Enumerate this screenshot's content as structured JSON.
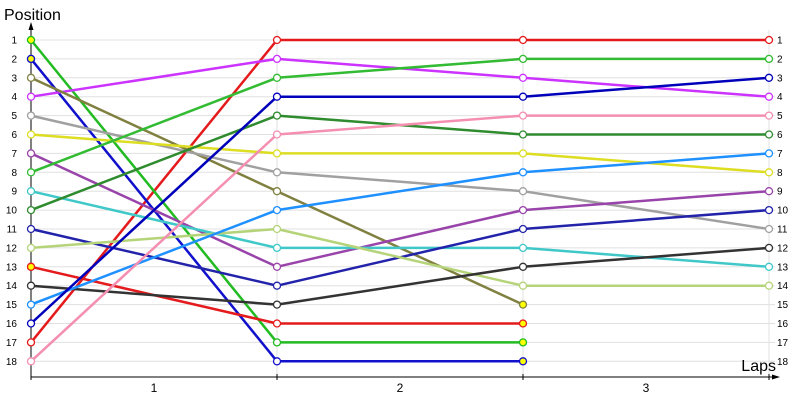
{
  "chart_data": {
    "type": "line",
    "title": "",
    "xlabel": "Laps",
    "ylabel": "Position",
    "x": [
      0,
      1,
      2,
      3
    ],
    "x_tick_labels": [
      "1",
      "2",
      "3"
    ],
    "y_ticks": [
      1,
      2,
      3,
      4,
      5,
      6,
      7,
      8,
      9,
      10,
      11,
      12,
      13,
      14,
      15,
      16,
      17,
      18
    ],
    "ylim": [
      1,
      18
    ],
    "y_inverted": true,
    "grid": true,
    "series": [
      {
        "color": "#e41a1c",
        "values": [
          17,
          1,
          1,
          1
        ]
      },
      {
        "color": "#1111cc",
        "values": [
          2,
          18,
          18,
          null
        ]
      },
      {
        "color": "#22bb22",
        "values": [
          1,
          17,
          17,
          null
        ]
      },
      {
        "color": "#cc33ff",
        "values": [
          4,
          2,
          3,
          4
        ]
      },
      {
        "color": "#808040",
        "values": [
          3,
          9,
          15,
          null
        ]
      },
      {
        "color": "#a0a0a0",
        "values": [
          5,
          8,
          9,
          11
        ]
      },
      {
        "color": "#dddd22",
        "values": [
          6,
          7,
          7,
          8
        ]
      },
      {
        "color": "#9944aa",
        "values": [
          7,
          13,
          10,
          9
        ]
      },
      {
        "color": "#33bb33",
        "values": [
          8,
          3,
          2,
          2
        ]
      },
      {
        "color": "#40c8c8",
        "values": [
          9,
          12,
          12,
          13
        ]
      },
      {
        "color": "#2e8b2e",
        "values": [
          10,
          5,
          6,
          6
        ]
      },
      {
        "color": "#2222aa",
        "values": [
          11,
          14,
          11,
          10
        ]
      },
      {
        "color": "#b5d47a",
        "values": [
          12,
          11,
          14,
          14
        ]
      },
      {
        "color": "#e41a1c",
        "values": [
          13,
          16,
          16,
          null
        ]
      },
      {
        "color": "#333333",
        "values": [
          14,
          15,
          13,
          12
        ]
      },
      {
        "color": "#1e90ff",
        "values": [
          15,
          10,
          8,
          7
        ]
      },
      {
        "color": "#0000bb",
        "values": [
          16,
          4,
          4,
          3
        ]
      },
      {
        "color": "#f48fb1",
        "values": [
          18,
          6,
          5,
          5
        ]
      }
    ]
  }
}
